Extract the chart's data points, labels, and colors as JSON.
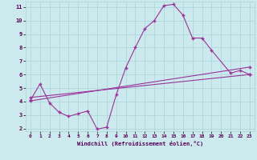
{
  "title": "",
  "xlabel": "Windchill (Refroidissement éolien,°C)",
  "ylabel": "",
  "bg_color": "#cce9ee",
  "line_color": "#993399",
  "xlim": [
    -0.5,
    23.5
  ],
  "ylim": [
    1.8,
    11.4
  ],
  "yticks": [
    2,
    3,
    4,
    5,
    6,
    7,
    8,
    9,
    10,
    11
  ],
  "xticks": [
    0,
    1,
    2,
    3,
    4,
    5,
    6,
    7,
    8,
    9,
    10,
    11,
    12,
    13,
    14,
    15,
    16,
    17,
    18,
    19,
    20,
    21,
    22,
    23
  ],
  "line1_x": [
    0,
    1,
    2,
    3,
    4,
    5,
    6,
    7,
    8,
    9,
    10,
    11,
    12,
    13,
    14,
    15,
    16,
    17,
    18,
    19,
    21,
    22,
    23
  ],
  "line1_y": [
    4.1,
    5.3,
    3.9,
    3.2,
    2.9,
    3.1,
    3.3,
    1.95,
    2.1,
    4.5,
    6.5,
    8.0,
    9.4,
    10.0,
    11.1,
    11.2,
    10.4,
    8.7,
    8.7,
    7.8,
    6.1,
    6.3,
    6.0
  ],
  "line2_x": [
    0,
    23
  ],
  "line2_y": [
    4.3,
    6.0
  ],
  "line3_x": [
    0,
    23
  ],
  "line3_y": [
    4.05,
    6.55
  ],
  "gridcolor": "#aad4dc",
  "gridstyle": "-"
}
